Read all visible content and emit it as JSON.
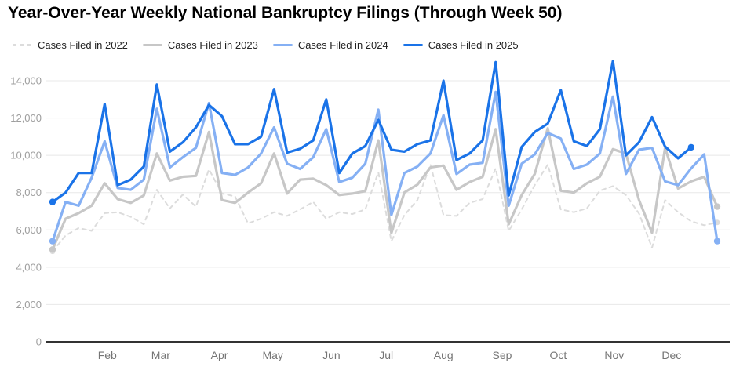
{
  "title": "Year-Over-Year Weekly National Bankruptcy Filings (Through Week 50)",
  "colors": {
    "y2022": "#dcdcdc",
    "y2023": "#c7c7c7",
    "y2024": "#85b0f4",
    "y2025": "#1a73e8",
    "gridline": "#e8e8e8",
    "axis_baseline": "#333333",
    "y_tick_label": "#9e9e9e",
    "x_tick_label": "#757575"
  },
  "chart_data": {
    "type": "line",
    "title": "Year-Over-Year Weekly National Bankruptcy Filings (Through Week 50)",
    "xlabel": "",
    "ylabel": "",
    "x_unit": "week of year",
    "grid": true,
    "legend_position": "top",
    "y_axis": {
      "min": 0,
      "max": 14000,
      "ticks": [
        0,
        2000,
        4000,
        6000,
        8000,
        10000,
        12000,
        14000
      ]
    },
    "x_axis": {
      "weeks_shown": 52,
      "month_ticks": [
        {
          "label": "Feb",
          "week_pos": 5.2
        },
        {
          "label": "Mar",
          "week_pos": 9.3
        },
        {
          "label": "Apr",
          "week_pos": 13.8
        },
        {
          "label": "May",
          "week_pos": 17.9
        },
        {
          "label": "Jun",
          "week_pos": 22.4
        },
        {
          "label": "Jul",
          "week_pos": 26.6
        },
        {
          "label": "Aug",
          "week_pos": 31.0
        },
        {
          "label": "Sep",
          "week_pos": 35.5
        },
        {
          "label": "Oct",
          "week_pos": 39.8
        },
        {
          "label": "Nov",
          "week_pos": 44.1
        },
        {
          "label": "Dec",
          "week_pos": 48.5
        }
      ]
    },
    "series": [
      {
        "name": "Cases Filed in 2022",
        "color": "#dcdcdc",
        "dashed": true,
        "start_week": 1,
        "values": [
          4850,
          5700,
          6100,
          5950,
          6900,
          6950,
          6700,
          6300,
          8150,
          7150,
          7900,
          7250,
          9250,
          7950,
          7800,
          6350,
          6600,
          6950,
          6750,
          7100,
          7500,
          6600,
          6950,
          6850,
          7100,
          9100,
          5400,
          6800,
          7600,
          9500,
          6800,
          6750,
          7450,
          7650,
          9300,
          5950,
          7100,
          8400,
          9500,
          7100,
          6950,
          7150,
          8100,
          8350,
          7870,
          6880,
          5050,
          7600,
          6950,
          6460,
          6250,
          6400
        ]
      },
      {
        "name": "Cases Filed in 2023",
        "color": "#c7c7c7",
        "dashed": false,
        "start_week": 1,
        "values": [
          4950,
          6600,
          6900,
          7300,
          8500,
          7650,
          7450,
          7850,
          10100,
          8650,
          8850,
          8900,
          11250,
          7600,
          7450,
          8000,
          8500,
          10100,
          7950,
          8700,
          8750,
          8400,
          7870,
          7950,
          8080,
          10800,
          5830,
          8010,
          8430,
          9350,
          9450,
          8150,
          8570,
          8850,
          11400,
          6300,
          7870,
          9000,
          11450,
          8100,
          8000,
          8500,
          8850,
          10330,
          10100,
          7600,
          5850,
          10400,
          8220,
          8600,
          8850,
          7250
        ]
      },
      {
        "name": "Cases Filed in 2024",
        "color": "#85b0f4",
        "dashed": false,
        "start_week": 1,
        "values": [
          5400,
          7500,
          7300,
          8800,
          10750,
          8250,
          8150,
          8700,
          12500,
          9350,
          9900,
          10400,
          12800,
          9050,
          8950,
          9350,
          10100,
          11500,
          9550,
          9270,
          9900,
          11400,
          8570,
          8800,
          9550,
          12450,
          6800,
          9050,
          9400,
          10100,
          12150,
          9000,
          9500,
          9600,
          13400,
          7300,
          9550,
          10050,
          11200,
          10900,
          9270,
          9500,
          10100,
          13150,
          9000,
          10300,
          10400,
          8600,
          8400,
          9300,
          10050,
          5400
        ]
      },
      {
        "name": "Cases Filed in 2025",
        "color": "#1a73e8",
        "dashed": false,
        "start_week": 1,
        "values": [
          7500,
          8000,
          9050,
          9050,
          12750,
          8400,
          8700,
          9400,
          13800,
          10200,
          10700,
          11500,
          12700,
          12100,
          10600,
          10600,
          11000,
          13550,
          10150,
          10350,
          10800,
          13000,
          9050,
          10100,
          10500,
          11900,
          10300,
          10200,
          10600,
          10800,
          14000,
          9750,
          10100,
          10800,
          15000,
          7850,
          10450,
          11250,
          11700,
          13500,
          10750,
          10500,
          11400,
          15050,
          10000,
          10700,
          12050,
          10470,
          9840,
          10430
        ]
      }
    ]
  }
}
